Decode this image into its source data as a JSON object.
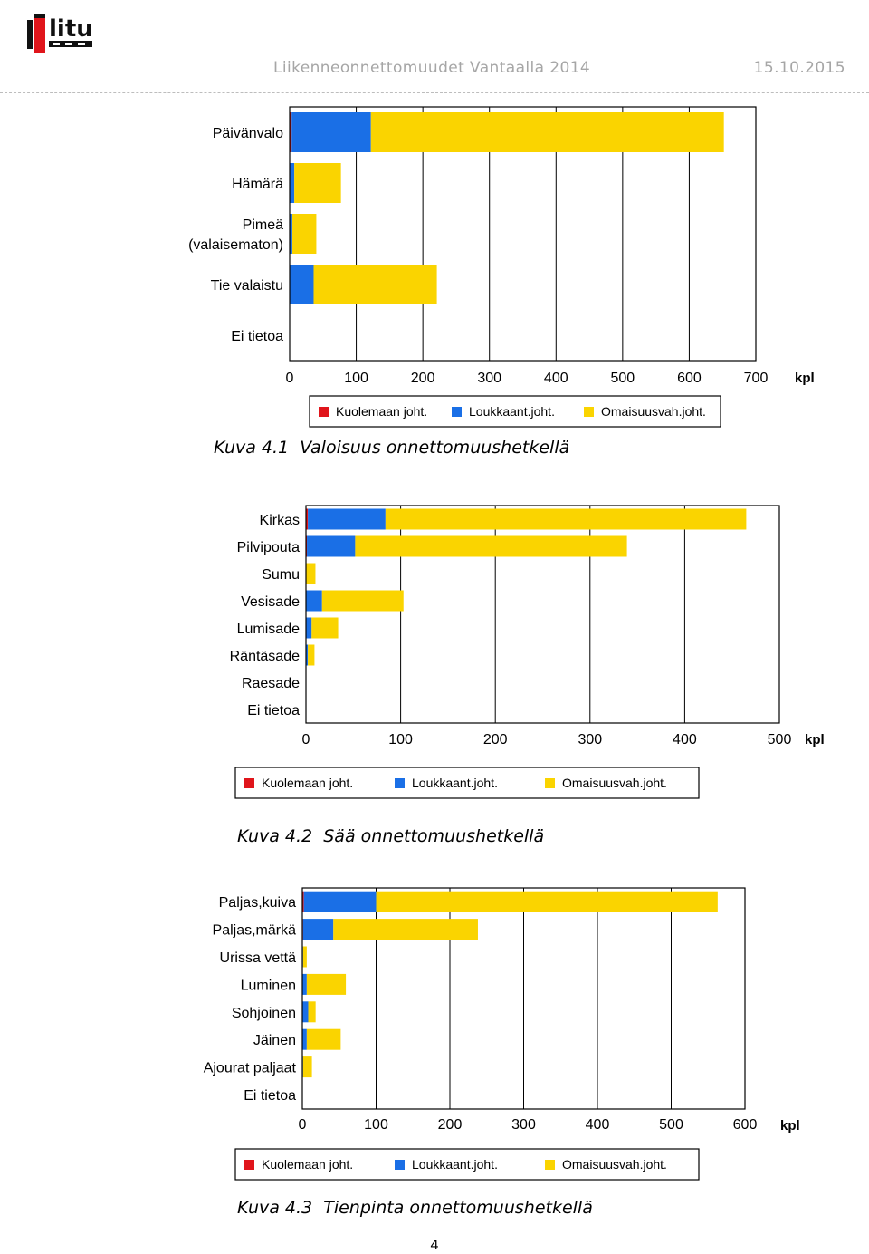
{
  "header": {
    "logo_text": "litu",
    "title": "Liikenneonnettomuudet Vantaalla 2014",
    "date": "15.10.2015"
  },
  "colors": {
    "red": "#e0151b",
    "blue": "#1a6fe6",
    "yellow": "#fad400"
  },
  "chart_data": [
    {
      "type": "bar",
      "orientation": "horizontal",
      "stacked": true,
      "categories": [
        "Päivänvalo",
        "Hämärä",
        "Pimeä (valaisematon)",
        "Tie valaistu",
        "Ei tietoa"
      ],
      "category_lines": [
        [
          "Päivänvalo"
        ],
        [
          "Hämärä"
        ],
        [
          "Pimeä",
          "(valaisematon)"
        ],
        [
          "Tie valaistu"
        ],
        [
          "Ei tietoa"
        ]
      ],
      "series": [
        {
          "name": "Kuolemaan joht.",
          "color": "#e0151b",
          "values": [
            3,
            0,
            0,
            0,
            0
          ]
        },
        {
          "name": "Loukkaant.joht.",
          "color": "#1a6fe6",
          "values": [
            119,
            7,
            4,
            36,
            0
          ]
        },
        {
          "name": "Omaisuusvah.joht.",
          "color": "#fad400",
          "values": [
            530,
            70,
            36,
            185,
            0
          ]
        }
      ],
      "xlim": [
        0,
        700
      ],
      "xticks": [
        0,
        100,
        200,
        300,
        400,
        500,
        600,
        700
      ],
      "unit": "kpl",
      "legend": [
        "Kuolemaan joht.",
        "Loukkaant.joht.",
        "Omaisuusvah.joht."
      ],
      "caption_num": "Kuva 4.1",
      "caption_text": "Valoisuus onnettomuushetkellä"
    },
    {
      "type": "bar",
      "orientation": "horizontal",
      "stacked": true,
      "categories": [
        "Kirkas",
        "Pilvipouta",
        "Sumu",
        "Vesisade",
        "Lumisade",
        "Räntäsade",
        "Raesade",
        "Ei tietoa"
      ],
      "category_lines": [
        [
          "Kirkas"
        ],
        [
          "Pilvipouta"
        ],
        [
          "Sumu"
        ],
        [
          "Vesisade"
        ],
        [
          "Lumisade"
        ],
        [
          "Räntäsade"
        ],
        [
          "Raesade"
        ],
        [
          "Ei tietoa"
        ]
      ],
      "series": [
        {
          "name": "Kuolemaan joht.",
          "color": "#e0151b",
          "values": [
            2,
            1,
            0,
            0,
            0,
            0,
            0,
            0
          ]
        },
        {
          "name": "Loukkaant.joht.",
          "color": "#1a6fe6",
          "values": [
            82,
            51,
            0,
            17,
            6,
            2,
            0,
            0
          ]
        },
        {
          "name": "Omaisuusvah.joht.",
          "color": "#fad400",
          "values": [
            381,
            287,
            10,
            86,
            28,
            7,
            0,
            0
          ]
        }
      ],
      "xlim": [
        0,
        500
      ],
      "xticks": [
        0,
        100,
        200,
        300,
        400,
        500
      ],
      "unit": "kpl",
      "legend": [
        "Kuolemaan joht.",
        "Loukkaant.joht.",
        "Omaisuusvah.joht."
      ],
      "caption_num": "Kuva 4.2",
      "caption_text": "Sää onnettomuushetkellä"
    },
    {
      "type": "bar",
      "orientation": "horizontal",
      "stacked": true,
      "categories": [
        "Paljas,kuiva",
        "Paljas,märkä",
        "Urissa vettä",
        "Luminen",
        "Sohjoinen",
        "Jäinen",
        "Ajourat paljaat",
        "Ei tietoa"
      ],
      "category_lines": [
        [
          "Paljas,kuiva"
        ],
        [
          "Paljas,märkä"
        ],
        [
          "Urissa vettä"
        ],
        [
          "Luminen"
        ],
        [
          "Sohjoinen"
        ],
        [
          "Jäinen"
        ],
        [
          "Ajourat paljaat"
        ],
        [
          "Ei tietoa"
        ]
      ],
      "series": [
        {
          "name": "Kuolemaan joht.",
          "color": "#e0151b",
          "values": [
            2,
            1,
            0,
            0,
            0,
            0,
            0,
            0
          ]
        },
        {
          "name": "Loukkaant.joht.",
          "color": "#1a6fe6",
          "values": [
            98,
            41,
            1,
            6,
            8,
            6,
            1,
            0
          ]
        },
        {
          "name": "Omaisuusvah.joht.",
          "color": "#fad400",
          "values": [
            463,
            196,
            5,
            53,
            10,
            46,
            12,
            0
          ]
        }
      ],
      "xlim": [
        0,
        600
      ],
      "xticks": [
        0,
        100,
        200,
        300,
        400,
        500,
        600
      ],
      "unit": "kpl",
      "legend": [
        "Kuolemaan joht.",
        "Loukkaant.joht.",
        "Omaisuusvah.joht."
      ],
      "caption_num": "Kuva 4.3",
      "caption_text": "Tienpinta onnettomuushetkellä"
    }
  ],
  "page_number": "4"
}
